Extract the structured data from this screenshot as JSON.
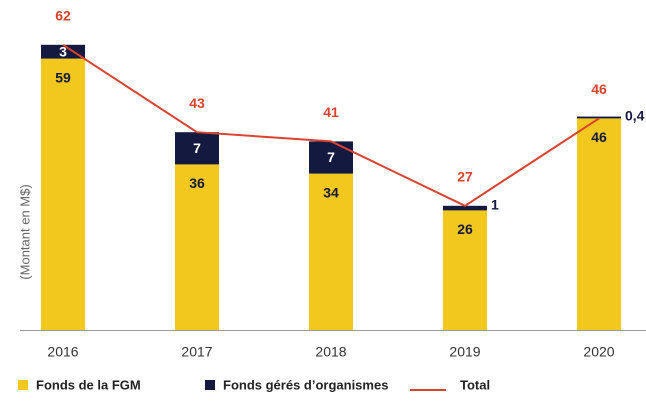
{
  "chart_data": {
    "type": "bar",
    "y_axis_label": "(Montant en M$)",
    "categories": [
      "2016",
      "2017",
      "2018",
      "2019",
      "2020"
    ],
    "stacked": true,
    "ylim": [
      0,
      70
    ],
    "series": [
      {
        "name": "Fonds de la FGM",
        "color": "#f2c81e",
        "values": [
          59,
          36,
          34,
          26,
          46
        ]
      },
      {
        "name": "Fonds gérés d’organismes",
        "color": "#14193f",
        "values": [
          3,
          7,
          7,
          1,
          0.4
        ],
        "value_labels": [
          "3",
          "7",
          "7",
          "1",
          "0,4"
        ]
      },
      {
        "name": "Total",
        "type": "line",
        "color": "#d9432f",
        "values": [
          62,
          43,
          41,
          27,
          46
        ]
      }
    ]
  }
}
